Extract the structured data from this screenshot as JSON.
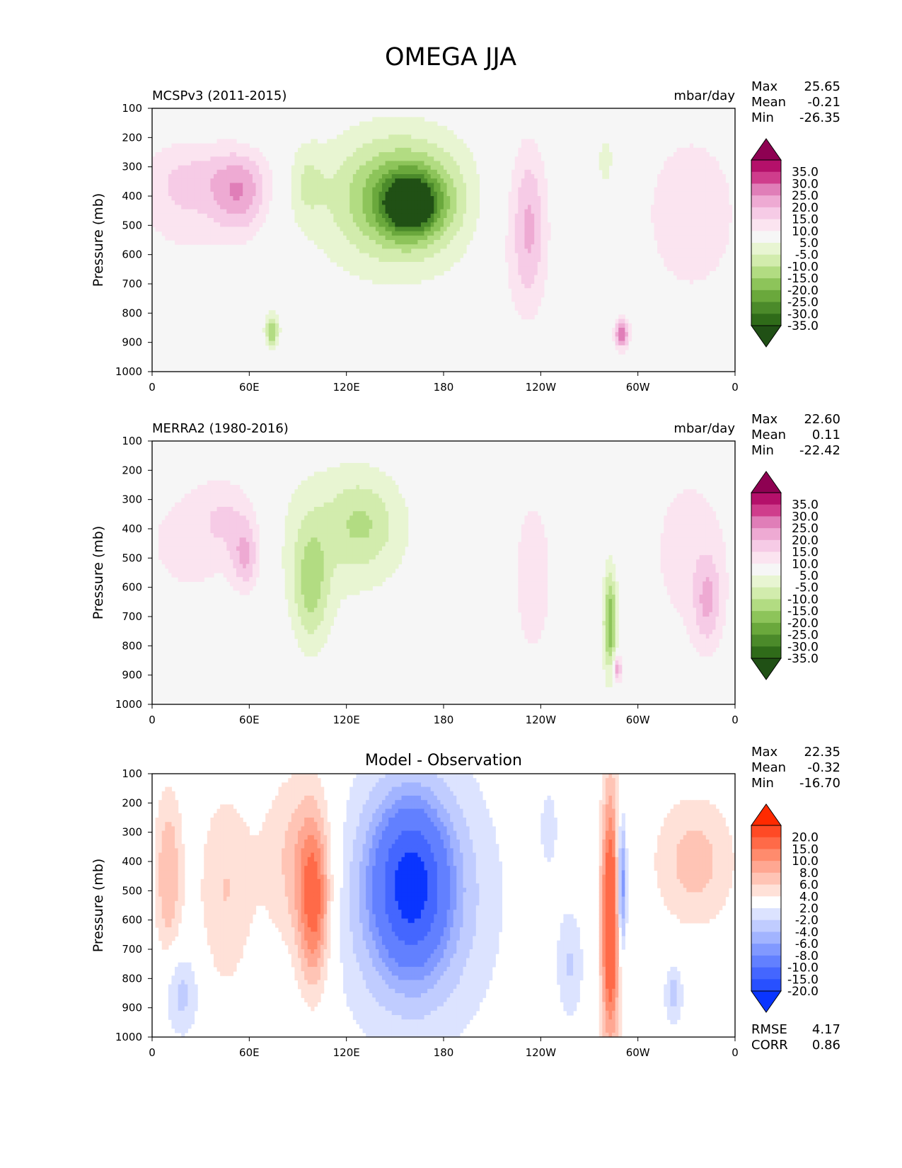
{
  "figure_title": "OMEGA JJA",
  "panels": [
    {
      "left_title": "MCSPv3 (2011-2015)",
      "center_title": "",
      "right_title": "mbar/day",
      "stats": [
        {
          "label": "Max",
          "value": "25.65"
        },
        {
          "label": "Mean",
          "value": "-0.21"
        },
        {
          "label": "Min",
          "value": "-26.35"
        }
      ],
      "extra_stats": []
    },
    {
      "left_title": "MERRA2 (1980-2016)",
      "center_title": "",
      "right_title": "mbar/day",
      "stats": [
        {
          "label": "Max",
          "value": "22.60"
        },
        {
          "label": "Mean",
          "value": "0.11"
        },
        {
          "label": "Min",
          "value": "-22.42"
        }
      ],
      "extra_stats": []
    },
    {
      "left_title": "",
      "center_title": "Model - Observation",
      "right_title": "",
      "stats": [
        {
          "label": "Max",
          "value": "22.35"
        },
        {
          "label": "Mean",
          "value": "-0.32"
        },
        {
          "label": "Min",
          "value": "-16.70"
        }
      ],
      "extra_stats": [
        {
          "label": "RMSE",
          "value": "4.17"
        },
        {
          "label": "CORR",
          "value": "0.86"
        }
      ]
    }
  ],
  "colorbars": {
    "field": {
      "labels": [
        "35.0",
        "30.0",
        "25.0",
        "20.0",
        "15.0",
        "10.0",
        "5.0",
        "-5.0",
        "-10.0",
        "-15.0",
        "-20.0",
        "-25.0",
        "-30.0",
        "-35.0"
      ],
      "colors": [
        "#8e0152",
        "#b4106a",
        "#cf3d8c",
        "#e07eb8",
        "#eeaad3",
        "#f6cbe6",
        "#fbe4f0",
        "#f6f6f6",
        "#e8f5d2",
        "#d2ecad",
        "#b2dc82",
        "#8dc45a",
        "#6aa83c",
        "#4b8a2a",
        "#2f6b19",
        "#205015"
      ]
    },
    "diff": {
      "labels": [
        "20.0",
        "15.0",
        "10.0",
        "8.0",
        "6.0",
        "4.0",
        "2.0",
        "-2.0",
        "-4.0",
        "-6.0",
        "-8.0",
        "-10.0",
        "-15.0",
        "-20.0"
      ],
      "colors": [
        "#ff2a00",
        "#ff4a25",
        "#ff6a48",
        "#ff8b6d",
        "#ffa792",
        "#ffc4b5",
        "#ffe1d8",
        "#ffffff",
        "#dce3ff",
        "#c0ccff",
        "#a2b4ff",
        "#8199ff",
        "#6280ff",
        "#4466ff",
        "#2850ff",
        "#0a35ff"
      ]
    }
  },
  "chart_data": [
    {
      "type": "contour",
      "title": "MCSPv3 (2011-2015)",
      "units": "mbar/day",
      "xlabel": "",
      "ylabel": "Pressure (mb)",
      "x_ticks": [
        "0",
        "60E",
        "120E",
        "180",
        "120W",
        "60W",
        "0"
      ],
      "x_tick_values": [
        0,
        60,
        120,
        180,
        240,
        300,
        360
      ],
      "y_ticks": [
        "100",
        "200",
        "300",
        "400",
        "500",
        "600",
        "700",
        "800",
        "900",
        "1000"
      ],
      "y_tick_values": [
        100,
        200,
        300,
        400,
        500,
        600,
        700,
        800,
        900,
        1000
      ],
      "xlim": [
        0,
        360
      ],
      "ylim": [
        1000,
        100
      ],
      "colormap": "field",
      "features": [
        {
          "lon": 20,
          "p": 420,
          "value": 8,
          "lon_w": 22,
          "p_h": 290
        },
        {
          "lon": 55,
          "p": 400,
          "value": 15,
          "lon_w": 12,
          "p_h": 200
        },
        {
          "lon": 38,
          "p": 330,
          "value": 6,
          "lon_w": 30,
          "p_h": 160
        },
        {
          "lon": 160,
          "p": 430,
          "value": -28,
          "lon_w": 12,
          "p_h": 140
        },
        {
          "lon": 155,
          "p": 400,
          "value": -18,
          "lon_w": 26,
          "p_h": 260
        },
        {
          "lon": 148,
          "p": 430,
          "value": -9,
          "lon_w": 40,
          "p_h": 420
        },
        {
          "lon": 95,
          "p": 350,
          "value": -8,
          "lon_w": 8,
          "p_h": 180
        },
        {
          "lon": 74,
          "p": 860,
          "value": -20,
          "lon_w": 3,
          "p_h": 80
        },
        {
          "lon": 233,
          "p": 500,
          "value": 12,
          "lon_w": 7,
          "p_h": 380
        },
        {
          "lon": 225,
          "p": 520,
          "value": 6,
          "lon_w": 16,
          "p_h": 480
        },
        {
          "lon": 333,
          "p": 460,
          "value": 8,
          "lon_w": 25,
          "p_h": 480
        },
        {
          "lon": 290,
          "p": 870,
          "value": 25,
          "lon_w": 3,
          "p_h": 70
        },
        {
          "lon": 280,
          "p": 280,
          "value": -8,
          "lon_w": 4,
          "p_h": 160
        }
      ]
    },
    {
      "type": "contour",
      "title": "MERRA2 (1980-2016)",
      "units": "mbar/day",
      "xlabel": "",
      "ylabel": "Pressure (mb)",
      "x_ticks": [
        "0",
        "60E",
        "120E",
        "180",
        "120W",
        "60W",
        "0"
      ],
      "x_tick_values": [
        0,
        60,
        120,
        180,
        240,
        300,
        360
      ],
      "y_ticks": [
        "100",
        "200",
        "300",
        "400",
        "500",
        "600",
        "700",
        "800",
        "900",
        "1000"
      ],
      "y_tick_values": [
        100,
        200,
        300,
        400,
        500,
        600,
        700,
        800,
        900,
        1000
      ],
      "xlim": [
        0,
        360
      ],
      "ylim": [
        1000,
        100
      ],
      "colormap": "field",
      "features": [
        {
          "lon": 25,
          "p": 450,
          "value": 7,
          "lon_w": 28,
          "p_h": 360
        },
        {
          "lon": 58,
          "p": 500,
          "value": 14,
          "lon_w": 6,
          "p_h": 160
        },
        {
          "lon": 48,
          "p": 360,
          "value": 8,
          "lon_w": 14,
          "p_h": 200
        },
        {
          "lon": 98,
          "p": 600,
          "value": -14,
          "lon_w": 8,
          "p_h": 300
        },
        {
          "lon": 110,
          "p": 420,
          "value": -7,
          "lon_w": 40,
          "p_h": 420
        },
        {
          "lon": 130,
          "p": 380,
          "value": -10,
          "lon_w": 15,
          "p_h": 220
        },
        {
          "lon": 235,
          "p": 560,
          "value": 7,
          "lon_w": 12,
          "p_h": 560
        },
        {
          "lon": 283,
          "p": 720,
          "value": -25,
          "lon_w": 3,
          "p_h": 260
        },
        {
          "lon": 287,
          "p": 880,
          "value": 22,
          "lon_w": 2,
          "p_h": 70
        },
        {
          "lon": 332,
          "p": 480,
          "value": 7,
          "lon_w": 22,
          "p_h": 520
        },
        {
          "lon": 343,
          "p": 650,
          "value": 12,
          "lon_w": 6,
          "p_h": 220
        }
      ]
    },
    {
      "type": "contour",
      "title": "Model - Observation",
      "units": "",
      "xlabel": "",
      "ylabel": "Pressure (mb)",
      "x_ticks": [
        "0",
        "60E",
        "120E",
        "180",
        "120W",
        "60W",
        "0"
      ],
      "x_tick_values": [
        0,
        60,
        120,
        180,
        240,
        300,
        360
      ],
      "y_ticks": [
        "100",
        "200",
        "300",
        "400",
        "500",
        "600",
        "700",
        "800",
        "900",
        "1000"
      ],
      "y_tick_values": [
        100,
        200,
        300,
        400,
        500,
        600,
        700,
        800,
        900,
        1000
      ],
      "xlim": [
        0,
        360
      ],
      "ylim": [
        1000,
        100
      ],
      "colormap": "diff",
      "features": [
        {
          "lon": 160,
          "p": 480,
          "value": -15,
          "lon_w": 14,
          "p_h": 340
        },
        {
          "lon": 158,
          "p": 500,
          "value": -6,
          "lon_w": 28,
          "p_h": 560
        },
        {
          "lon": 165,
          "p": 550,
          "value": -3,
          "lon_w": 40,
          "p_h": 800
        },
        {
          "lon": 100,
          "p": 550,
          "value": 10,
          "lon_w": 7,
          "p_h": 420
        },
        {
          "lon": 90,
          "p": 400,
          "value": 5,
          "lon_w": 16,
          "p_h": 460
        },
        {
          "lon": 10,
          "p": 450,
          "value": 6,
          "lon_w": 6,
          "p_h": 420
        },
        {
          "lon": 45,
          "p": 500,
          "value": 4,
          "lon_w": 12,
          "p_h": 500
        },
        {
          "lon": 283,
          "p": 600,
          "value": 15,
          "lon_w": 4,
          "p_h": 620
        },
        {
          "lon": 290,
          "p": 480,
          "value": -12,
          "lon_w": 2,
          "p_h": 320
        },
        {
          "lon": 335,
          "p": 400,
          "value": 5,
          "lon_w": 18,
          "p_h": 320
        },
        {
          "lon": 18,
          "p": 850,
          "value": -5,
          "lon_w": 8,
          "p_h": 220
        },
        {
          "lon": 258,
          "p": 750,
          "value": -4,
          "lon_w": 6,
          "p_h": 280
        },
        {
          "lon": 322,
          "p": 850,
          "value": -5,
          "lon_w": 4,
          "p_h": 160
        },
        {
          "lon": 245,
          "p": 280,
          "value": -3,
          "lon_w": 4,
          "p_h": 200
        }
      ]
    }
  ]
}
